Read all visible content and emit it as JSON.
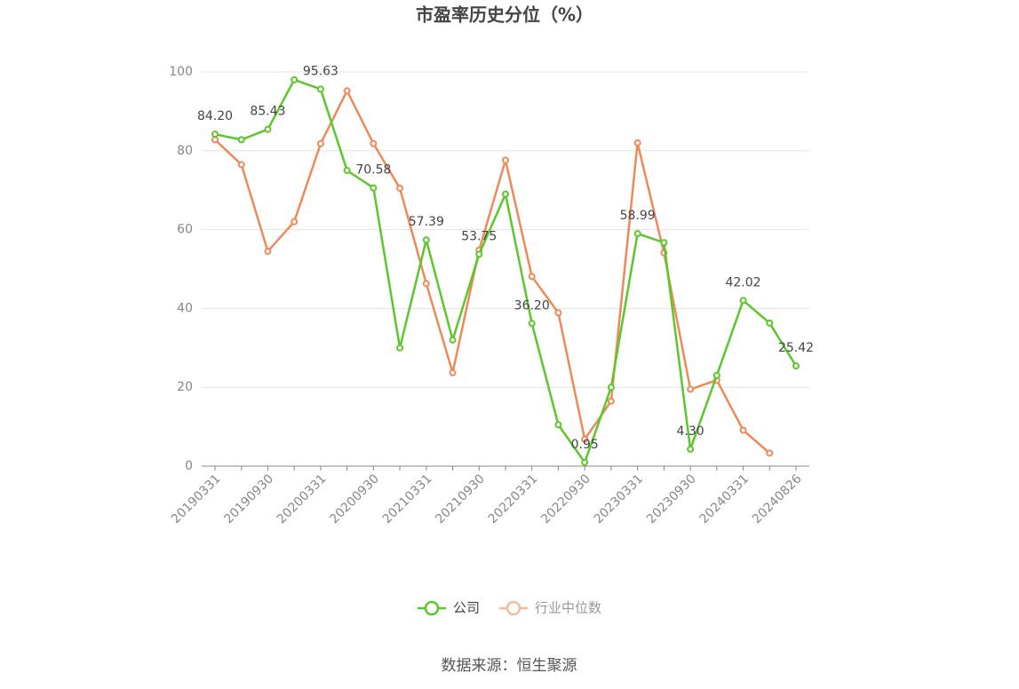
{
  "chart_data": {
    "type": "line",
    "title": "市盈率历史分位（%）",
    "source": "数据来源：恒生聚源",
    "categories": [
      "20190331",
      null,
      "20190930",
      null,
      "20200331",
      null,
      "20200930",
      null,
      "20210331",
      null,
      "20210930",
      null,
      "20220331",
      null,
      "20220930",
      null,
      "20230331",
      null,
      "20230930",
      null,
      "20240331",
      null,
      "20240826"
    ],
    "series": [
      {
        "name": "公司",
        "color": "#5cc72a",
        "values": [
          84.2,
          82.8,
          85.43,
          98,
          95.63,
          75,
          70.58,
          30,
          57.39,
          32,
          53.75,
          69,
          36.2,
          10.5,
          0.95,
          20,
          58.99,
          56.7,
          4.3,
          23,
          42.02,
          36.3,
          25.42
        ],
        "value_labels": [
          "84.20",
          null,
          "85.43",
          null,
          "95.63",
          null,
          "70.58",
          null,
          "57.39",
          null,
          "53.75",
          null,
          "36.20",
          null,
          "0.95",
          null,
          "58.99",
          null,
          "4.30",
          null,
          "42.02",
          null,
          "25.42"
        ]
      },
      {
        "name": "行业中位数",
        "color": "#f0895a",
        "values": [
          82.8,
          76.5,
          54.5,
          62,
          81.8,
          95.2,
          81.8,
          70.5,
          46.3,
          23.7,
          54.8,
          77.6,
          48.1,
          38.9,
          6.8,
          16.5,
          82,
          54.1,
          19.5,
          21.8,
          9.1,
          3.3,
          null
        ]
      }
    ],
    "ylim": [
      0,
      100
    ],
    "yticks": [
      0,
      20,
      40,
      60,
      80,
      100
    ],
    "grid": true
  }
}
